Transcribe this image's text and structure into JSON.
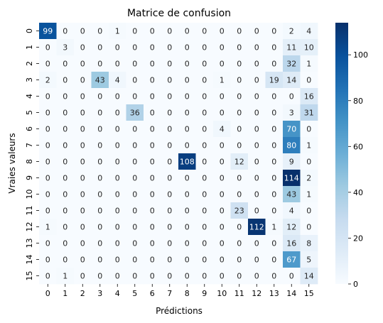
{
  "chart_data": {
    "type": "heatmap",
    "title": "Matrice de confusion",
    "xlabel": "Prédictions",
    "ylabel": "Vraies valeurs",
    "x_categories": [
      "0",
      "1",
      "2",
      "3",
      "4",
      "5",
      "6",
      "7",
      "8",
      "9",
      "10",
      "11",
      "12",
      "13",
      "14",
      "15"
    ],
    "y_categories": [
      "0",
      "1",
      "2",
      "3",
      "4",
      "5",
      "6",
      "7",
      "8",
      "9",
      "10",
      "11",
      "12",
      "13",
      "14",
      "15"
    ],
    "values": [
      [
        99,
        0,
        0,
        0,
        1,
        0,
        0,
        0,
        0,
        0,
        0,
        0,
        0,
        0,
        2,
        4
      ],
      [
        0,
        3,
        0,
        0,
        0,
        0,
        0,
        0,
        0,
        0,
        0,
        0,
        0,
        0,
        11,
        10
      ],
      [
        0,
        0,
        0,
        0,
        0,
        0,
        0,
        0,
        0,
        0,
        0,
        0,
        0,
        0,
        32,
        1
      ],
      [
        2,
        0,
        0,
        43,
        4,
        0,
        0,
        0,
        0,
        0,
        1,
        0,
        0,
        19,
        14,
        0
      ],
      [
        0,
        0,
        0,
        0,
        0,
        0,
        0,
        0,
        0,
        0,
        0,
        0,
        0,
        0,
        0,
        16
      ],
      [
        0,
        0,
        0,
        0,
        0,
        36,
        0,
        0,
        0,
        0,
        0,
        0,
        0,
        0,
        3,
        31
      ],
      [
        0,
        0,
        0,
        0,
        0,
        0,
        0,
        0,
        0,
        0,
        4,
        0,
        0,
        0,
        70,
        0
      ],
      [
        0,
        0,
        0,
        0,
        0,
        0,
        0,
        0,
        0,
        0,
        0,
        0,
        0,
        0,
        80,
        1
      ],
      [
        0,
        0,
        0,
        0,
        0,
        0,
        0,
        0,
        108,
        0,
        0,
        12,
        0,
        0,
        9,
        0
      ],
      [
        0,
        0,
        0,
        0,
        0,
        0,
        0,
        0,
        0,
        0,
        0,
        0,
        0,
        0,
        114,
        2
      ],
      [
        0,
        0,
        0,
        0,
        0,
        0,
        0,
        0,
        0,
        0,
        0,
        0,
        0,
        0,
        43,
        1
      ],
      [
        0,
        0,
        0,
        0,
        0,
        0,
        0,
        0,
        0,
        0,
        0,
        23,
        0,
        0,
        4,
        0
      ],
      [
        1,
        0,
        0,
        0,
        0,
        0,
        0,
        0,
        0,
        0,
        0,
        0,
        112,
        1,
        12,
        0
      ],
      [
        0,
        0,
        0,
        0,
        0,
        0,
        0,
        0,
        0,
        0,
        0,
        0,
        0,
        0,
        16,
        8
      ],
      [
        0,
        0,
        0,
        0,
        0,
        0,
        0,
        0,
        0,
        0,
        0,
        0,
        0,
        0,
        67,
        5
      ],
      [
        0,
        1,
        0,
        0,
        0,
        0,
        0,
        0,
        0,
        0,
        0,
        0,
        0,
        0,
        0,
        14
      ]
    ],
    "vmin": 0,
    "vmax": 114,
    "colormap": "Blues",
    "colorbar_ticks": [
      0,
      20,
      40,
      60,
      80,
      100
    ]
  }
}
